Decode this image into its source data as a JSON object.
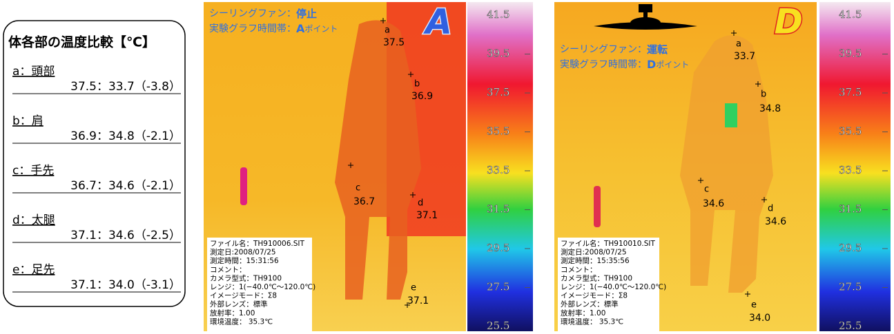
{
  "comparison": {
    "title": "体各部の温度比較【℃】",
    "rows": [
      {
        "label": "a：頭部",
        "values": "37.5：33.7（-3.8）"
      },
      {
        "label": "b：肩",
        "values": "36.9：34.8（-2.1）"
      },
      {
        "label": "c：手先",
        "values": "36.7：34.6（-2.1）"
      },
      {
        "label": "d：太腿",
        "values": "37.1：34.6（-2.5）"
      },
      {
        "label": "e：足先",
        "values": "37.1：34.0（-3.1）"
      }
    ]
  },
  "panels": [
    {
      "letter": "A",
      "fan_label": "シーリングファン：",
      "fan_state": "停止",
      "time_label": "実験グラフ時間帯：",
      "time_point": "A",
      "time_suffix": "ポイント",
      "points": [
        {
          "id": "a",
          "temp": "37.5"
        },
        {
          "id": "b",
          "temp": "36.9"
        },
        {
          "id": "c",
          "temp": "36.7"
        },
        {
          "id": "d",
          "temp": "37.1"
        },
        {
          "id": "e",
          "temp": "37.1"
        }
      ],
      "info": [
        "ファイル名：TH910006.SIT",
        "測定日:2008/07/25",
        "測定時間：15:31:56",
        "コメント：",
        "カメラ型式：TH9100",
        "レンジ：1(−40.0℃〜120.0℃)",
        "イメージモード：Σ8",
        "外部レンズ：標準",
        "放射率：1.00",
        "環境温度： 35.3℃"
      ],
      "scale": [
        "41.5",
        "39.5",
        "37.5",
        "35.5",
        "33.5",
        "31.5",
        "29.5",
        "27.5",
        "25.5"
      ]
    },
    {
      "letter": "D",
      "fan_label": "シーリングファン：",
      "fan_state": "運転",
      "time_label": "実験グラフ時間帯：",
      "time_point": "D",
      "time_suffix": "ポイント",
      "points": [
        {
          "id": "a",
          "temp": "33.7"
        },
        {
          "id": "b",
          "temp": "34.8"
        },
        {
          "id": "c",
          "temp": "34.6"
        },
        {
          "id": "d",
          "temp": "34.6"
        },
        {
          "id": "e",
          "temp": "34.0"
        }
      ],
      "info": [
        "ファイル名：TH910010.SIT",
        "測定日:2008/07/25",
        "測定時間：15:35:56",
        "コメント：",
        "カメラ型式：TH9100",
        "レンジ：1(−40.0℃〜120.0℃)",
        "イメージモード：Σ8",
        "外部レンズ：標準",
        "放射率：1.00",
        "環境温度： 35.3℃"
      ],
      "scale": [
        "41.5",
        "39.5",
        "37.5",
        "35.5",
        "33.5",
        "31.5",
        "29.5",
        "27.5",
        "25.5"
      ]
    }
  ]
}
